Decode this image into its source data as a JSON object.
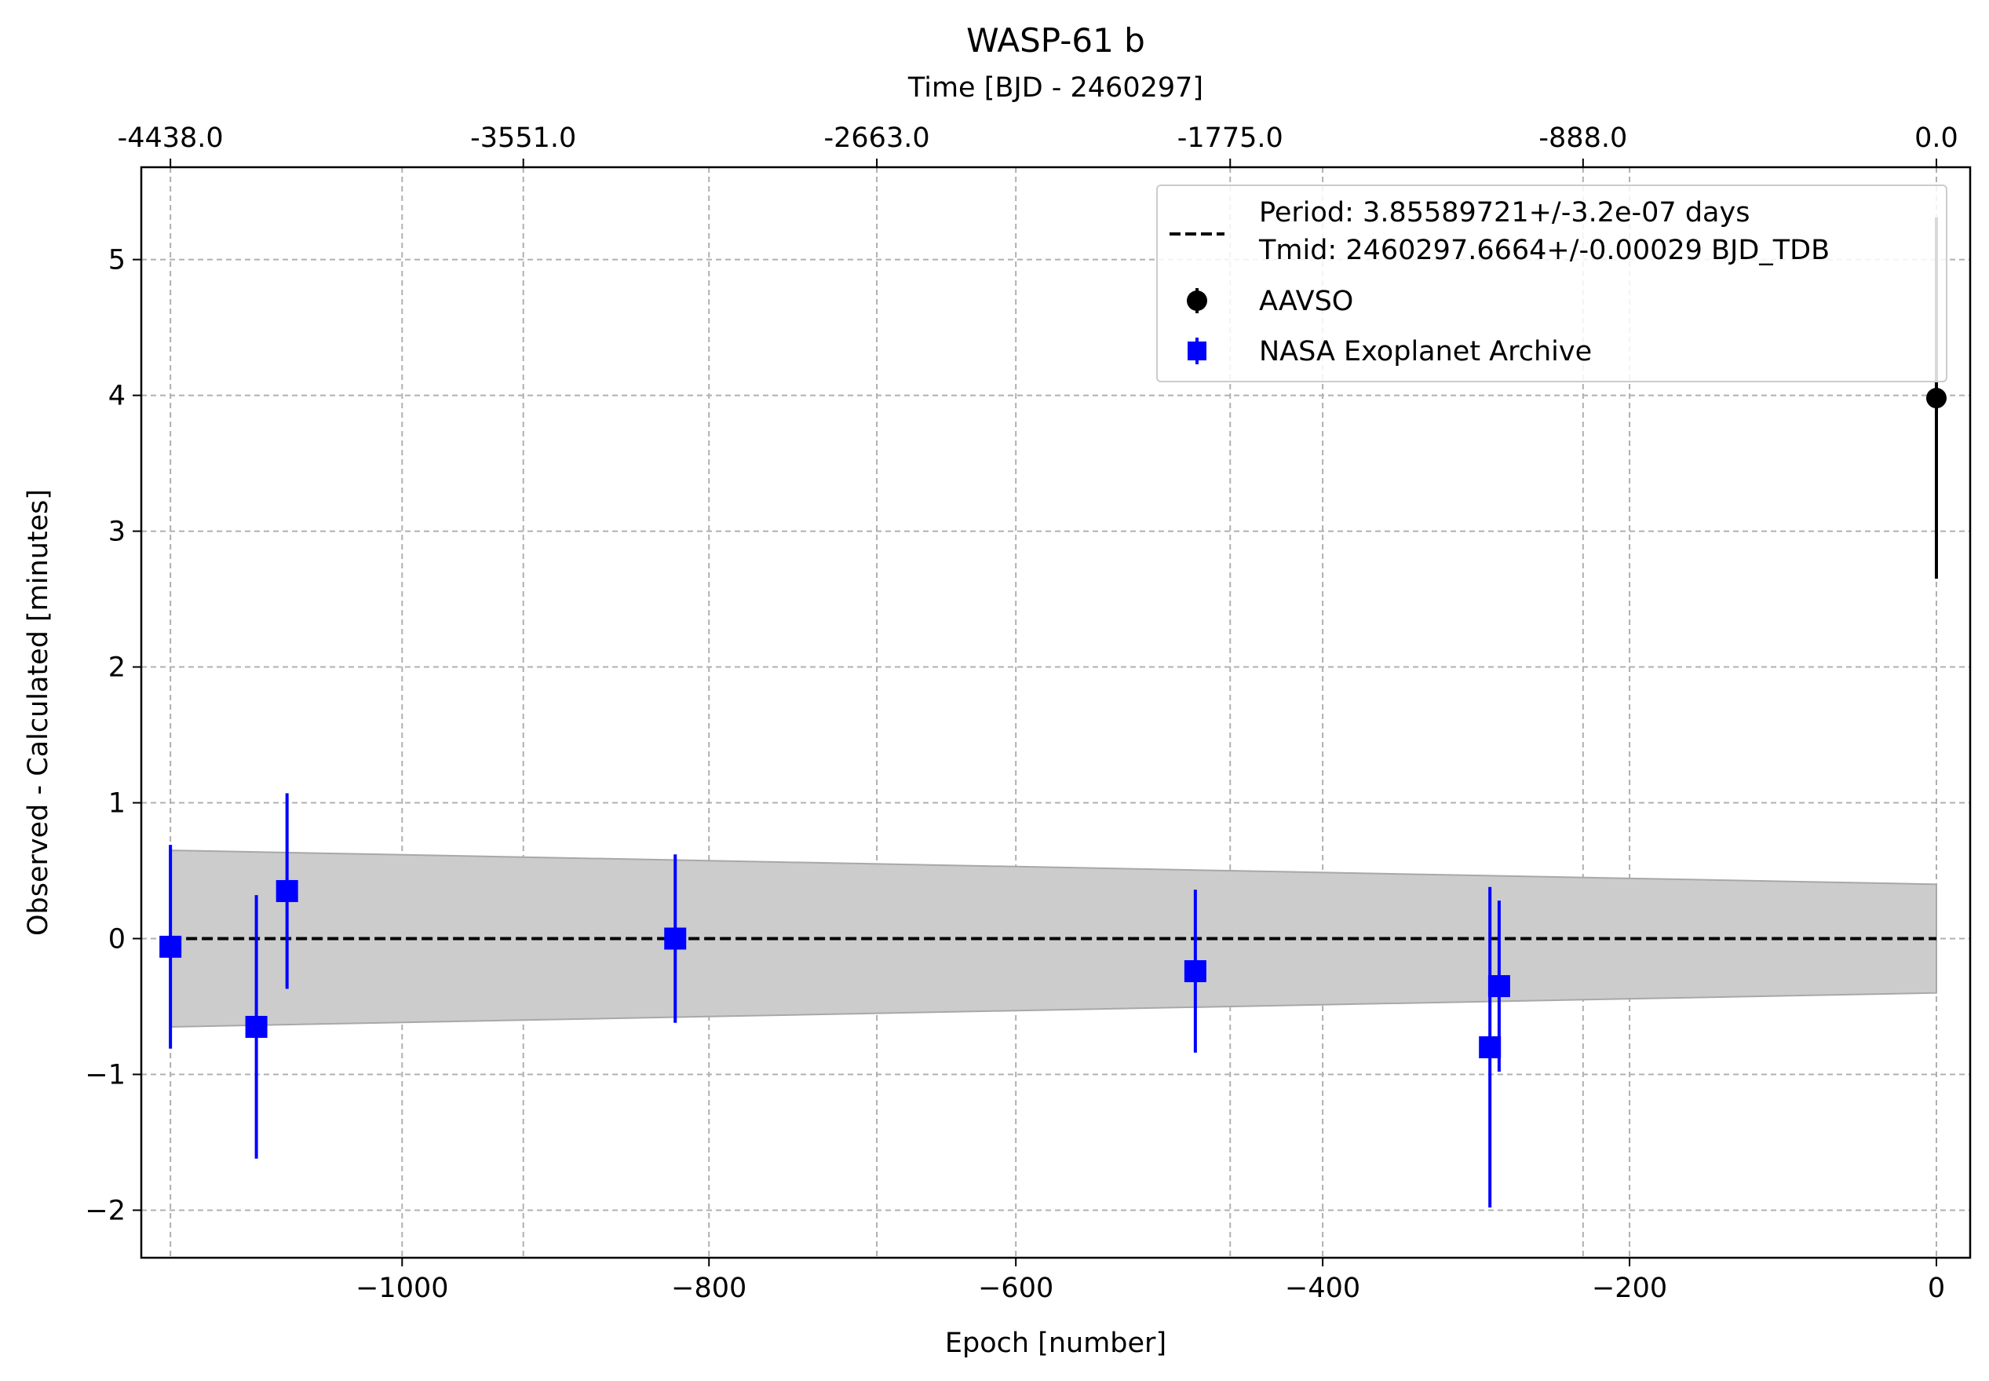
{
  "chart_data": {
    "type": "scatter",
    "title": "WASP-61 b",
    "xlabel": "Epoch [number]",
    "ylabel": "Observed - Calculated [minutes]",
    "top_xlabel": "Time [BJD - 2460297]",
    "xlim": [
      -1170,
      22
    ],
    "ylim": [
      -2.35,
      5.68
    ],
    "x_ticks": [
      -1000,
      -800,
      -600,
      -400,
      -200,
      0
    ],
    "x_tick_labels": [
      "−1000",
      "−800",
      "−600",
      "−400",
      "−200",
      "0"
    ],
    "y_ticks": [
      -2,
      -1,
      0,
      1,
      2,
      3,
      4,
      5
    ],
    "y_tick_labels": [
      "−2",
      "−1",
      "0",
      "1",
      "2",
      "3",
      "4",
      "5"
    ],
    "top_x_ticks": [
      -1151,
      -921,
      -690.6,
      -460.3,
      -230.3,
      0
    ],
    "top_x_tick_labels": [
      "-4438.0",
      "-3551.0",
      "-2663.0",
      "-1775.0",
      "-888.0",
      "0.0"
    ],
    "grid": true,
    "legend_position": "top-right",
    "fit": {
      "label_line1": "Period: 3.85589721+/-3.2e-07 days",
      "label_line2": "Tmid: 2460297.6664+/-0.00029 BJD_TDB",
      "color": "#000000",
      "band_color": "#cccccc",
      "band_x": [
        -1151,
        0
      ],
      "band_upper": [
        0.65,
        0.4
      ],
      "band_lower": [
        -0.65,
        -0.4
      ]
    },
    "series": [
      {
        "name": "AAVSO",
        "marker": "circle",
        "color": "#000000",
        "points": [
          {
            "x": 0,
            "y": 3.98,
            "err": 1.33
          }
        ]
      },
      {
        "name": "NASA Exoplanet Archive",
        "marker": "square",
        "color": "#0000ff",
        "points": [
          {
            "x": -1151,
            "y": -0.06,
            "err": 0.75
          },
          {
            "x": -1095,
            "y": -0.65,
            "err": 0.97
          },
          {
            "x": -1075,
            "y": 0.35,
            "err": 0.72
          },
          {
            "x": -822,
            "y": 0.0,
            "err": 0.62
          },
          {
            "x": -483,
            "y": -0.24,
            "err": 0.6
          },
          {
            "x": -291,
            "y": -0.8,
            "err": 1.18
          },
          {
            "x": -285,
            "y": -0.35,
            "err": 0.63
          }
        ]
      }
    ]
  }
}
